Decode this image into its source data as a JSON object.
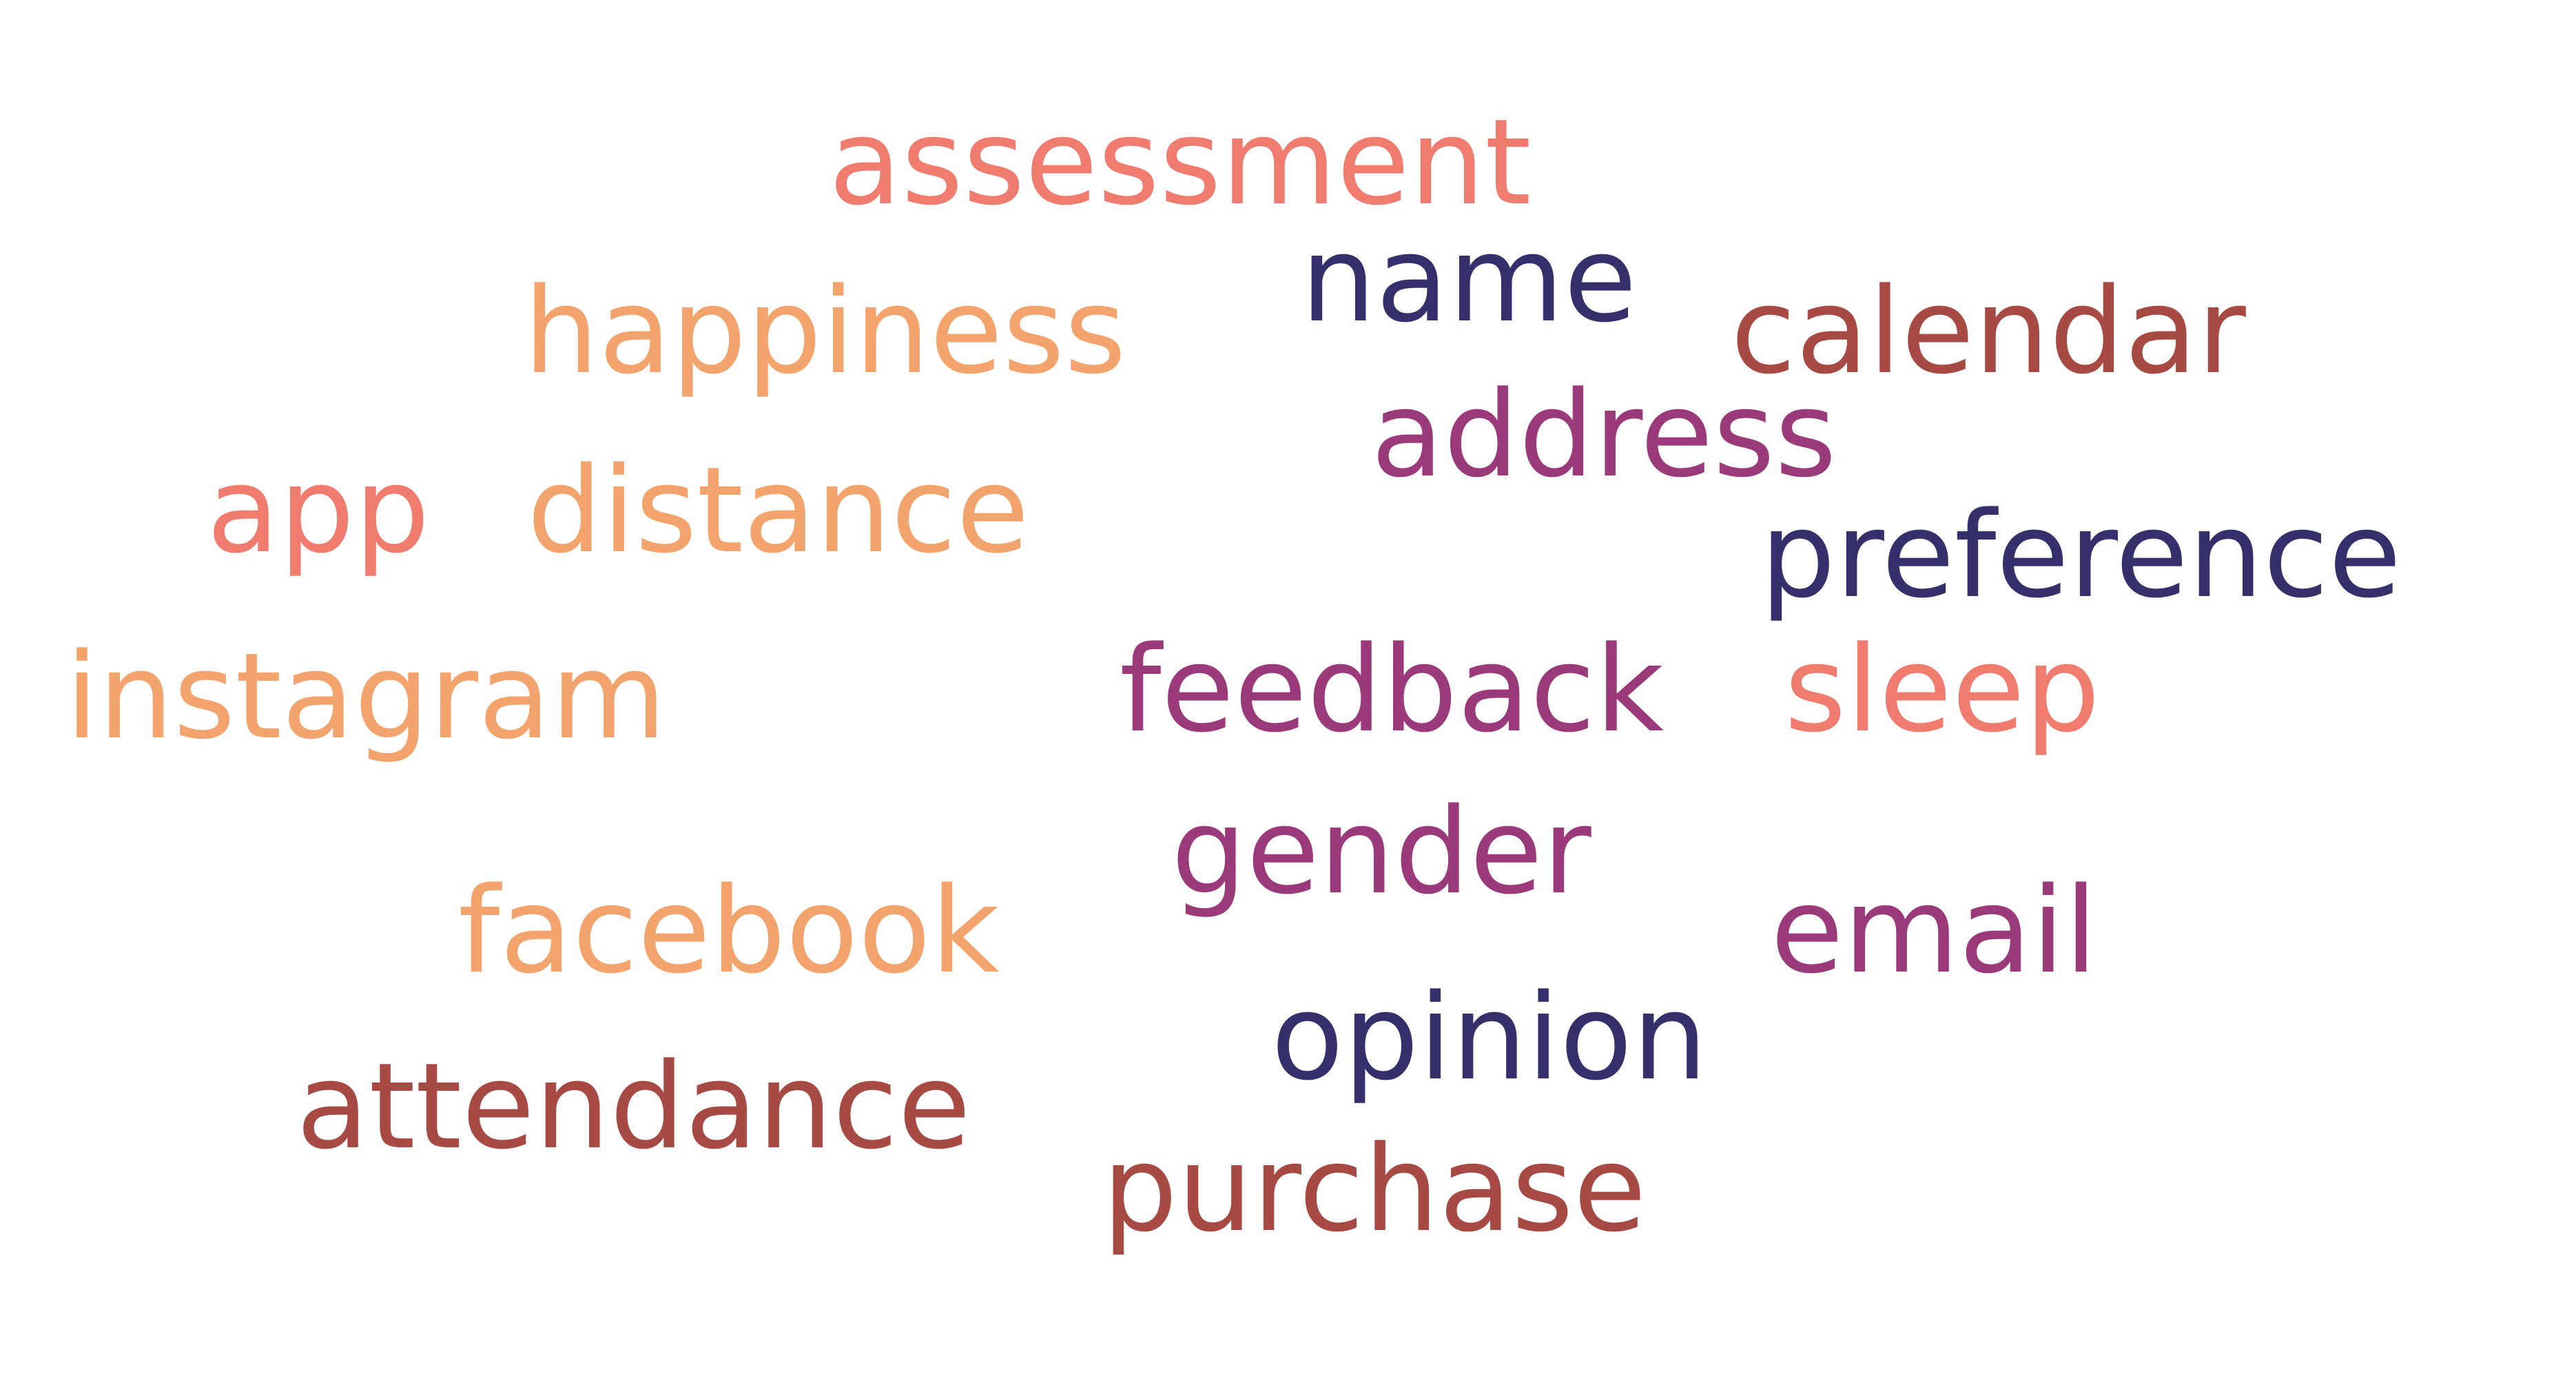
{
  "palette": {
    "salmon": "#f07c70",
    "orange": "#f2a46c",
    "brick": "#a84a44",
    "purple": "#9b3a7a",
    "navy": "#35306b"
  },
  "words": [
    {
      "text": "assessment",
      "color": "#f07c70"
    },
    {
      "text": "name",
      "color": "#35306b"
    },
    {
      "text": "happiness",
      "color": "#f2a46c"
    },
    {
      "text": "calendar",
      "color": "#a84a44"
    },
    {
      "text": "address",
      "color": "#9b3a7a"
    },
    {
      "text": "app",
      "color": "#f07c70"
    },
    {
      "text": "distance",
      "color": "#f2a46c"
    },
    {
      "text": "preference",
      "color": "#35306b"
    },
    {
      "text": "instagram",
      "color": "#f2a46c"
    },
    {
      "text": "feedback",
      "color": "#9b3a7a"
    },
    {
      "text": "sleep",
      "color": "#f07c70"
    },
    {
      "text": "gender",
      "color": "#9b3a7a"
    },
    {
      "text": "facebook",
      "color": "#f2a46c"
    },
    {
      "text": "email",
      "color": "#9b3a7a"
    },
    {
      "text": "opinion",
      "color": "#35306b"
    },
    {
      "text": "attendance",
      "color": "#a84a44"
    },
    {
      "text": "purchase",
      "color": "#a84a44"
    }
  ]
}
